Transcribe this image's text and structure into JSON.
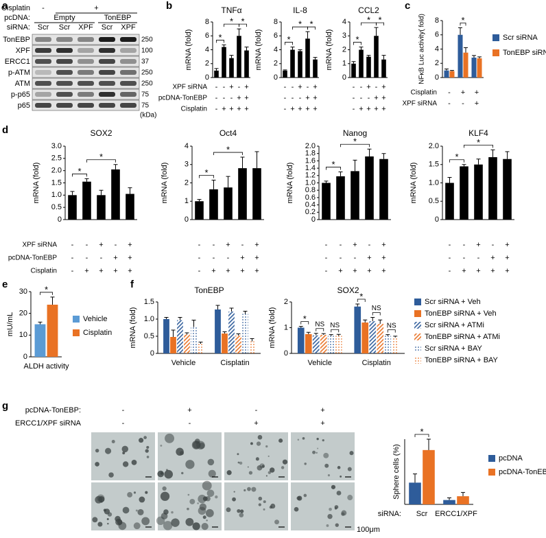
{
  "panel_labels": [
    "a",
    "b",
    "c",
    "d",
    "e",
    "f",
    "g"
  ],
  "western_blot": {
    "header_rows": [
      {
        "label": "Cisplatin",
        "items": [
          "-",
          "+"
        ]
      },
      {
        "label": "pcDNA:",
        "items": [
          "Empty",
          "TonEBP"
        ]
      },
      {
        "label": "siRNA:",
        "items": [
          "Scr",
          "Scr",
          "XPF",
          "Scr",
          "XPF"
        ]
      }
    ],
    "proteins": [
      {
        "name": "TonEBP",
        "mw": "250"
      },
      {
        "name": "XPF",
        "mw": "100"
      },
      {
        "name": "ERCC1",
        "mw": "37"
      },
      {
        "name": "p-ATM",
        "mw": "250"
      },
      {
        "name": "ATM",
        "mw": "250"
      },
      {
        "name": "p-p65",
        "mw": "75"
      },
      {
        "name": "p65",
        "mw": "75"
      }
    ],
    "mw_unit": "(kDa)"
  },
  "chart_data": [
    {
      "type": "bar",
      "title": "TNFα",
      "ylabel": "mRNA (fold)",
      "color": "#000000",
      "values": [
        1.0,
        4.4,
        2.8,
        6.0,
        3.9
      ],
      "errors": [
        0.3,
        0.3,
        0.4,
        1.0,
        0.5
      ],
      "ylim": [
        0,
        8
      ],
      "yticks": [
        0,
        2,
        4,
        6,
        8
      ],
      "conditions": [
        {
          "label": "XPF siRNA",
          "signs": [
            "-",
            "-",
            "+",
            "-",
            "+"
          ]
        },
        {
          "label": "pcDNA-TonEBP",
          "signs": [
            "-",
            "-",
            "-",
            "+",
            "+"
          ]
        },
        {
          "label": "Cisplatin",
          "signs": [
            "-",
            "+",
            "+",
            "+",
            "+"
          ]
        }
      ],
      "annotations": [
        "*",
        "*",
        "*"
      ]
    },
    {
      "type": "bar",
      "title": "IL-8",
      "ylabel": "mRNA (fold)",
      "color": "#000000",
      "values": [
        1.0,
        4.0,
        3.8,
        5.6,
        2.6
      ],
      "errors": [
        0.1,
        0.4,
        0.2,
        1.0,
        0.3
      ],
      "ylim": [
        0,
        8
      ],
      "yticks": [
        0,
        2,
        4,
        6,
        8
      ],
      "conditions": [
        {
          "signs": [
            "-",
            "-",
            "+",
            "-",
            "+"
          ]
        },
        {
          "signs": [
            "-",
            "-",
            "-",
            "+",
            "+"
          ]
        },
        {
          "signs": [
            "-",
            "+",
            "+",
            "+",
            "+"
          ]
        }
      ],
      "annotations": [
        "*",
        "*",
        "*"
      ]
    },
    {
      "type": "bar",
      "title": "CCL2",
      "ylabel": "mRNA (fold)",
      "color": "#000000",
      "values": [
        1.0,
        2.0,
        1.5,
        3.0,
        1.3
      ],
      "errors": [
        0.15,
        0.2,
        0.1,
        0.6,
        0.3
      ],
      "ylim": [
        0,
        4
      ],
      "yticks": [
        0,
        1,
        2,
        3,
        4
      ],
      "conditions": [
        {
          "signs": [
            "-",
            "-",
            "+",
            "-",
            "+"
          ]
        },
        {
          "signs": [
            "-",
            "-",
            "-",
            "+",
            "+"
          ]
        },
        {
          "signs": [
            "-",
            "+",
            "+",
            "+",
            "+"
          ]
        }
      ],
      "annotations": [
        "*",
        "*",
        "*"
      ]
    },
    {
      "type": "bar",
      "ylabel": "NFκB Luc activity( fold)",
      "categories": [
        null,
        null,
        null
      ],
      "series": [
        {
          "name": "Scr siRNA",
          "color": "#2e5c9a",
          "values": [
            1.0,
            6.0,
            2.8
          ],
          "errors": [
            0.2,
            1.0,
            0.3
          ]
        },
        {
          "name": "TonEBP siRNA",
          "color": "#e97224",
          "values": [
            0.9,
            3.5,
            2.7
          ],
          "errors": [
            0.1,
            0.7,
            0.2
          ]
        }
      ],
      "ylim": [
        0,
        8
      ],
      "yticks": [
        0,
        2,
        4,
        6,
        8
      ],
      "legend": "right",
      "conditions": [
        {
          "label": "Cisplatin",
          "signs": [
            "-",
            "+",
            "+"
          ]
        },
        {
          "label": "XPF siRNA",
          "signs": [
            "-",
            "-",
            "+"
          ]
        }
      ],
      "annotations": [
        "*"
      ]
    },
    {
      "type": "bar",
      "title": "SOX2",
      "ylabel": "mRNA (fold)",
      "color": "#000000",
      "values": [
        1.0,
        1.55,
        1.0,
        2.05,
        1.05
      ],
      "errors": [
        0.15,
        0.12,
        0.2,
        0.2,
        0.25
      ],
      "ylim": [
        0,
        3
      ],
      "yticks": [
        0,
        0.5,
        {
          "value": 1,
          "label": "1.0"
        },
        1.5,
        {
          "value": 2,
          "label": "2.0"
        },
        2.5,
        {
          "value": 3,
          "label": "3.0"
        }
      ],
      "conditions": [
        {
          "label": "XPF siRNA",
          "signs": [
            "-",
            "-",
            "+",
            "-",
            "+"
          ]
        },
        {
          "label": "pcDNA-TonEBP",
          "signs": [
            "-",
            "-",
            "-",
            "+",
            "+"
          ]
        },
        {
          "label": "Cisplatin",
          "signs": [
            "-",
            "+",
            "+",
            "+",
            "+"
          ]
        }
      ],
      "annotations": [
        "*",
        "*"
      ]
    },
    {
      "type": "bar",
      "title": "Oct4",
      "ylabel": "mRNA (fold)",
      "color": "#000000",
      "values": [
        1.0,
        1.65,
        1.75,
        2.8,
        2.8
      ],
      "errors": [
        0.1,
        0.5,
        0.6,
        0.6,
        0.9
      ],
      "ylim": [
        0,
        4
      ],
      "yticks": [
        0,
        1,
        2,
        3,
        4
      ],
      "conditions": [
        {
          "signs": [
            "-",
            "-",
            "+",
            "-",
            "+"
          ]
        },
        {
          "signs": [
            "-",
            "-",
            "-",
            "+",
            "+"
          ]
        },
        {
          "signs": [
            "-",
            "+",
            "+",
            "+",
            "+"
          ]
        }
      ],
      "annotations": [
        "*",
        "*"
      ]
    },
    {
      "type": "bar",
      "title": "Nanog",
      "ylabel": "mRNA (fold)",
      "color": "#000000",
      "values": [
        1.0,
        1.18,
        1.32,
        1.72,
        1.65
      ],
      "errors": [
        0.05,
        0.12,
        0.3,
        0.2,
        0.15
      ],
      "ylim": [
        0,
        2
      ],
      "yticks": [
        0,
        0.2,
        0.4,
        0.6,
        0.8,
        {
          "value": 1,
          "label": "1.0"
        },
        1.2,
        1.4,
        1.6,
        1.8,
        {
          "value": 2,
          "label": "2.0"
        }
      ],
      "conditions": [
        {
          "signs": [
            "-",
            "-",
            "+",
            "-",
            "+"
          ]
        },
        {
          "signs": [
            "-",
            "-",
            "-",
            "+",
            "+"
          ]
        },
        {
          "signs": [
            "-",
            "+",
            "+",
            "+",
            "+"
          ]
        }
      ],
      "annotations": [
        "*",
        "*"
      ]
    },
    {
      "type": "bar",
      "title": "KLF4",
      "ylabel": "mRNA (fold)",
      "color": "#000000",
      "values": [
        1.0,
        1.45,
        1.5,
        1.7,
        1.65
      ],
      "errors": [
        0.15,
        0.05,
        0.15,
        0.2,
        0.2
      ],
      "ylim": [
        0,
        2
      ],
      "yticks": [
        0,
        0.5,
        {
          "value": 1,
          "label": "1.0"
        },
        1.5,
        {
          "value": 2,
          "label": "2.0"
        }
      ],
      "conditions": [
        {
          "signs": [
            "-",
            "-",
            "+",
            "-",
            "+"
          ]
        },
        {
          "signs": [
            "-",
            "-",
            "-",
            "+",
            "+"
          ]
        },
        {
          "signs": [
            "-",
            "+",
            "+",
            "+",
            "+"
          ]
        }
      ],
      "annotations": [
        "*",
        "*"
      ]
    },
    {
      "type": "bar",
      "ylabel": "mU/mL",
      "categories": [
        "ALDH activity"
      ],
      "series": [
        {
          "name": "Vehicle",
          "color": "#5b9bd5",
          "values": [
            15
          ],
          "errors": [
            1
          ]
        },
        {
          "name": "Cisplatin",
          "color": "#e97224",
          "values": [
            24
          ],
          "errors": [
            3.5
          ]
        }
      ],
      "ylim": [
        0,
        30
      ],
      "yticks": [
        0,
        10,
        20,
        30
      ],
      "legend": "right",
      "annotations": [
        "*"
      ]
    },
    {
      "type": "bar",
      "title": "TonEBP",
      "ylabel": "mRNA (fold)",
      "categories": [
        "Vehicle",
        "Cisplatin"
      ],
      "series": [
        {
          "name": "Scr siRNA + Veh",
          "color": "#2e5c9a",
          "pattern": "solid",
          "values": [
            1.0,
            1.28
          ],
          "errors": [
            0.05,
            0.12
          ]
        },
        {
          "name": "TonEBP siRNA + Veh",
          "color": "#e97224",
          "pattern": "solid",
          "values": [
            0.48,
            0.58
          ],
          "errors": [
            0.2,
            0.05
          ]
        },
        {
          "name": "Scr siRNA + ATMi",
          "color": "#2e5c9a",
          "pattern": "hatch",
          "values": [
            0.97,
            1.22
          ],
          "errors": [
            0.08,
            0.1
          ]
        },
        {
          "name": "TonEBP siRNA + ATMi",
          "color": "#e97224",
          "pattern": "hatch",
          "values": [
            0.55,
            0.52
          ],
          "errors": [
            0.05,
            0.05
          ]
        },
        {
          "name": "Scr siRNA + BAY",
          "color": "#2e5c9a",
          "pattern": "dots",
          "values": [
            0.77,
            1.15
          ],
          "errors": [
            0.2,
            0.08
          ]
        },
        {
          "name": "TonEBP siRNA + BAY",
          "color": "#e97224",
          "pattern": "dots",
          "values": [
            0.28,
            0.35
          ],
          "errors": [
            0.05,
            0.08
          ]
        }
      ],
      "ylim": [
        0,
        1.5
      ],
      "yticks": [
        0,
        0.5,
        {
          "value": 1,
          "label": "1.0"
        },
        1.5
      ]
    },
    {
      "type": "bar",
      "title": "SOX2",
      "ylabel": "mRNA (fold)",
      "categories": [
        "Vehicle",
        "Cisplatin"
      ],
      "series": [
        {
          "name": "Scr siRNA + Veh",
          "color": "#2e5c9a",
          "pattern": "solid",
          "values": [
            1.0,
            1.82
          ],
          "errors": [
            0.05,
            0.1
          ]
        },
        {
          "name": "TonEBP siRNA + Veh",
          "color": "#e97224",
          "pattern": "solid",
          "values": [
            0.75,
            1.2
          ],
          "errors": [
            0.07,
            0.1
          ]
        },
        {
          "name": "Scr siRNA + ATMi",
          "color": "#2e5c9a",
          "pattern": "hatch",
          "values": [
            0.7,
            1.25
          ],
          "errors": [
            0.08,
            0.15
          ]
        },
        {
          "name": "TonEBP siRNA + ATMi",
          "color": "#e97224",
          "pattern": "hatch",
          "values": [
            0.72,
            1.15
          ],
          "errors": [
            0.05,
            0.15
          ]
        },
        {
          "name": "Scr siRNA + BAY",
          "color": "#2e5c9a",
          "pattern": "dots",
          "values": [
            0.68,
            0.68
          ],
          "errors": [
            0.05,
            0.05
          ]
        },
        {
          "name": "TonEBP siRNA + BAY",
          "color": "#e97224",
          "pattern": "dots",
          "values": [
            0.68,
            0.62
          ],
          "errors": [
            0.06,
            0.05
          ]
        }
      ],
      "ylim": [
        0,
        2
      ],
      "yticks": [
        0,
        1,
        2
      ],
      "legend": "right",
      "annotations": [
        "*",
        "NS",
        "NS",
        "*",
        "NS",
        "NS"
      ]
    },
    {
      "type": "bar",
      "ylabel": "Sphere cells (%)",
      "xlabel": "siRNA:",
      "categories": [
        "Scr",
        "ERCC1/XPF"
      ],
      "series": [
        {
          "name": "pcDNA",
          "color": "#2e5c9a",
          "values": [
            4,
            0.8
          ],
          "errors": [
            1.6,
            0.4
          ]
        },
        {
          "name": "pcDNA-TonEBP",
          "color": "#e97224",
          "values": [
            10,
            1.5
          ],
          "errors": [
            2,
            0.7
          ]
        }
      ],
      "ylim": [
        0,
        12
      ],
      "legend": "right",
      "annotations": [
        "*"
      ]
    }
  ],
  "sphere_images": {
    "conditions": [
      {
        "label": "pcDNA-TonEBP:",
        "signs": [
          "-",
          "+",
          "-",
          "+"
        ]
      },
      {
        "label": "ERCC1/XPF siRNA",
        "signs": [
          "-",
          "-",
          "+",
          "+"
        ]
      }
    ],
    "scale_label": "100μm"
  }
}
